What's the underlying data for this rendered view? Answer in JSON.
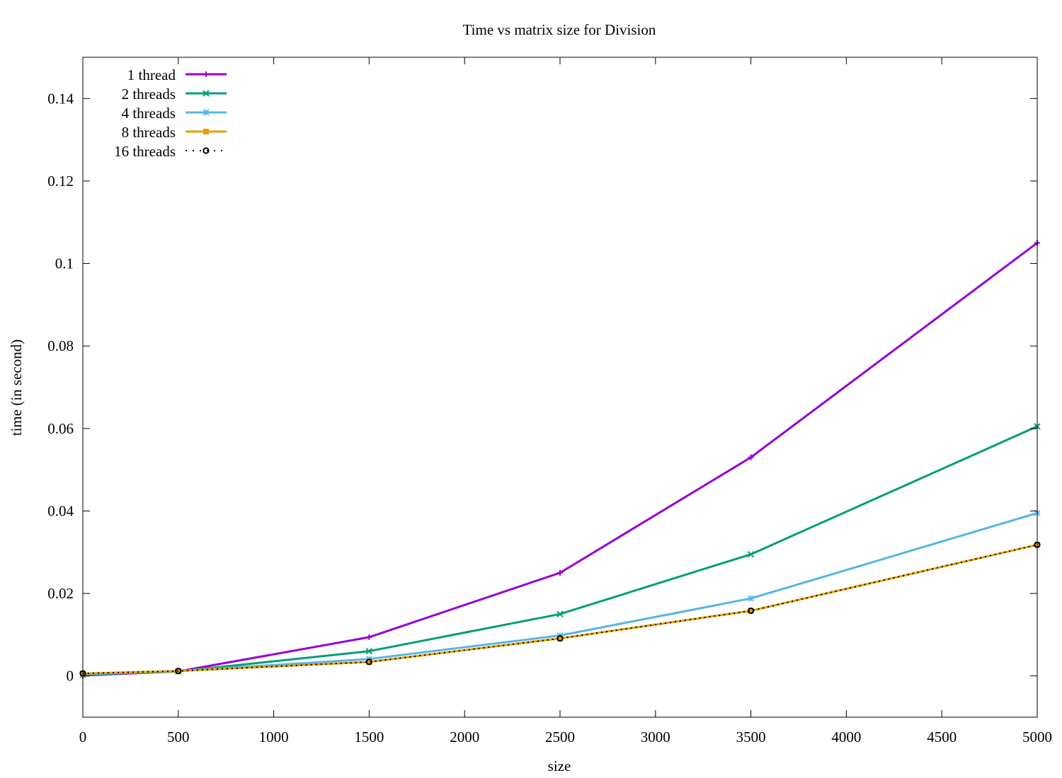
{
  "chart_data": {
    "type": "line",
    "title": "Time vs matrix size for Division",
    "xlabel": "size",
    "ylabel": "time (in second)",
    "xlim": [
      0,
      5000
    ],
    "ylim": [
      -0.01,
      0.15
    ],
    "xticks": [
      0,
      500,
      1000,
      1500,
      2000,
      2500,
      3000,
      3500,
      4000,
      4500,
      5000
    ],
    "xtick_labels": [
      "0",
      "500",
      "1000",
      "1500",
      "2000",
      "2500",
      "3000",
      "3500",
      "4000",
      "4500",
      "5000"
    ],
    "yticks": [
      0,
      0.02,
      0.04,
      0.06,
      0.08,
      0.1,
      0.12,
      0.14
    ],
    "ytick_labels": [
      "0",
      "0.02",
      "0.04",
      "0.06",
      "0.08",
      "0.1",
      "0.12",
      "0.14"
    ],
    "grid": false,
    "legend_position": "top-left",
    "x": [
      0,
      500,
      1500,
      2500,
      3500,
      5000
    ],
    "series": [
      {
        "name": "1 thread",
        "color": "#9400d3",
        "marker": "plus",
        "dash": false,
        "values": [
          0.0001,
          0.0011,
          0.0094,
          0.025,
          0.053,
          0.105
        ]
      },
      {
        "name": "2 threads",
        "color": "#009e73",
        "marker": "cross",
        "dash": false,
        "values": [
          0.0003,
          0.0011,
          0.006,
          0.015,
          0.0295,
          0.0605
        ]
      },
      {
        "name": "4 threads",
        "color": "#56b4e9",
        "marker": "star",
        "dash": false,
        "values": [
          0.0004,
          0.0012,
          0.0041,
          0.0098,
          0.0188,
          0.0395
        ]
      },
      {
        "name": "8 threads",
        "color": "#e69f00",
        "marker": "square",
        "dash": false,
        "values": [
          0.0006,
          0.0012,
          0.0034,
          0.0091,
          0.0158,
          0.0318
        ]
      },
      {
        "name": "16 threads",
        "color": "#000000",
        "marker": "circle",
        "dash": true,
        "values": [
          0.0006,
          0.0012,
          0.0034,
          0.0091,
          0.0158,
          0.0318
        ]
      }
    ]
  }
}
